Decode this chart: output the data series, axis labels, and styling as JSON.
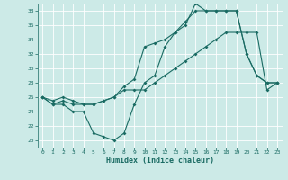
{
  "xlabel": "Humidex (Indice chaleur)",
  "xlim": [
    -0.5,
    23.5
  ],
  "ylim": [
    19,
    39
  ],
  "yticks": [
    20,
    22,
    24,
    26,
    28,
    30,
    32,
    34,
    36,
    38
  ],
  "xticks": [
    0,
    1,
    2,
    3,
    4,
    5,
    6,
    7,
    8,
    9,
    10,
    11,
    12,
    13,
    14,
    15,
    16,
    17,
    18,
    19,
    20,
    21,
    22,
    23
  ],
  "bg_color": "#cceae7",
  "line_color": "#1a6b63",
  "grid_color": "#ffffff",
  "line1": [
    26,
    25,
    25,
    24,
    24,
    21,
    20.5,
    20,
    21,
    25,
    28,
    29,
    33,
    35,
    36,
    39,
    38,
    38,
    38,
    38,
    32,
    29,
    28,
    28
  ],
  "line2": [
    26,
    25.5,
    26,
    25.5,
    25,
    25,
    25.5,
    26,
    27,
    27,
    27,
    28,
    29,
    30,
    31,
    32,
    33,
    34,
    35,
    35,
    35,
    35,
    27,
    28
  ],
  "line3": [
    26,
    25,
    25.5,
    25,
    25,
    25,
    25.5,
    26,
    27.5,
    28.5,
    33,
    33.5,
    34,
    35,
    36.5,
    38,
    38,
    38,
    38,
    38,
    32,
    29,
    28,
    28
  ]
}
